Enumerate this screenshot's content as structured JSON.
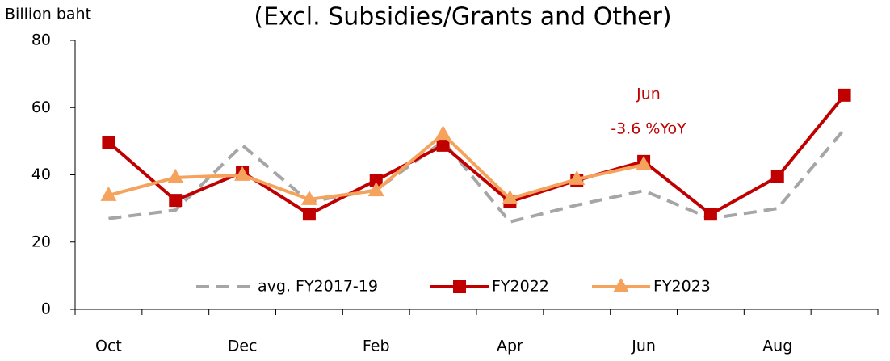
{
  "chart_data": {
    "type": "line",
    "title": "(Excl. Subsidies/Grants and Other)",
    "y_label": "Billion baht",
    "annotations": [
      "Jun",
      "-3.6 %YoY"
    ],
    "categories": [
      "Oct",
      null,
      "Dec",
      null,
      "Feb",
      null,
      "Apr",
      null,
      "Jun",
      null,
      "Aug",
      null
    ],
    "series": [
      {
        "name": "avg. FY2017-19",
        "color": "#a6a6a6",
        "dash": true,
        "marker": "none",
        "values": [
          27,
          29.5,
          48.8,
          32,
          35.5,
          50,
          26,
          31,
          35.3,
          27,
          30,
          53.6
        ]
      },
      {
        "name": "FY2022",
        "color": "#c00000",
        "dash": false,
        "marker": "square",
        "values": [
          49.7,
          32.4,
          40.8,
          28.3,
          38.4,
          48.8,
          32,
          38.4,
          44,
          28.3,
          39.4,
          63.7
        ]
      },
      {
        "name": "FY2023",
        "color": "#f5a25d",
        "dash": false,
        "marker": "triangle",
        "values": [
          33.9,
          39.2,
          39.9,
          32.7,
          35.3,
          52.1,
          32.9,
          38.7,
          43,
          null,
          null,
          null
        ]
      }
    ],
    "ylim": [
      0,
      80
    ],
    "yticks": [
      0,
      20,
      40,
      60,
      80
    ],
    "legend": "bottom"
  }
}
